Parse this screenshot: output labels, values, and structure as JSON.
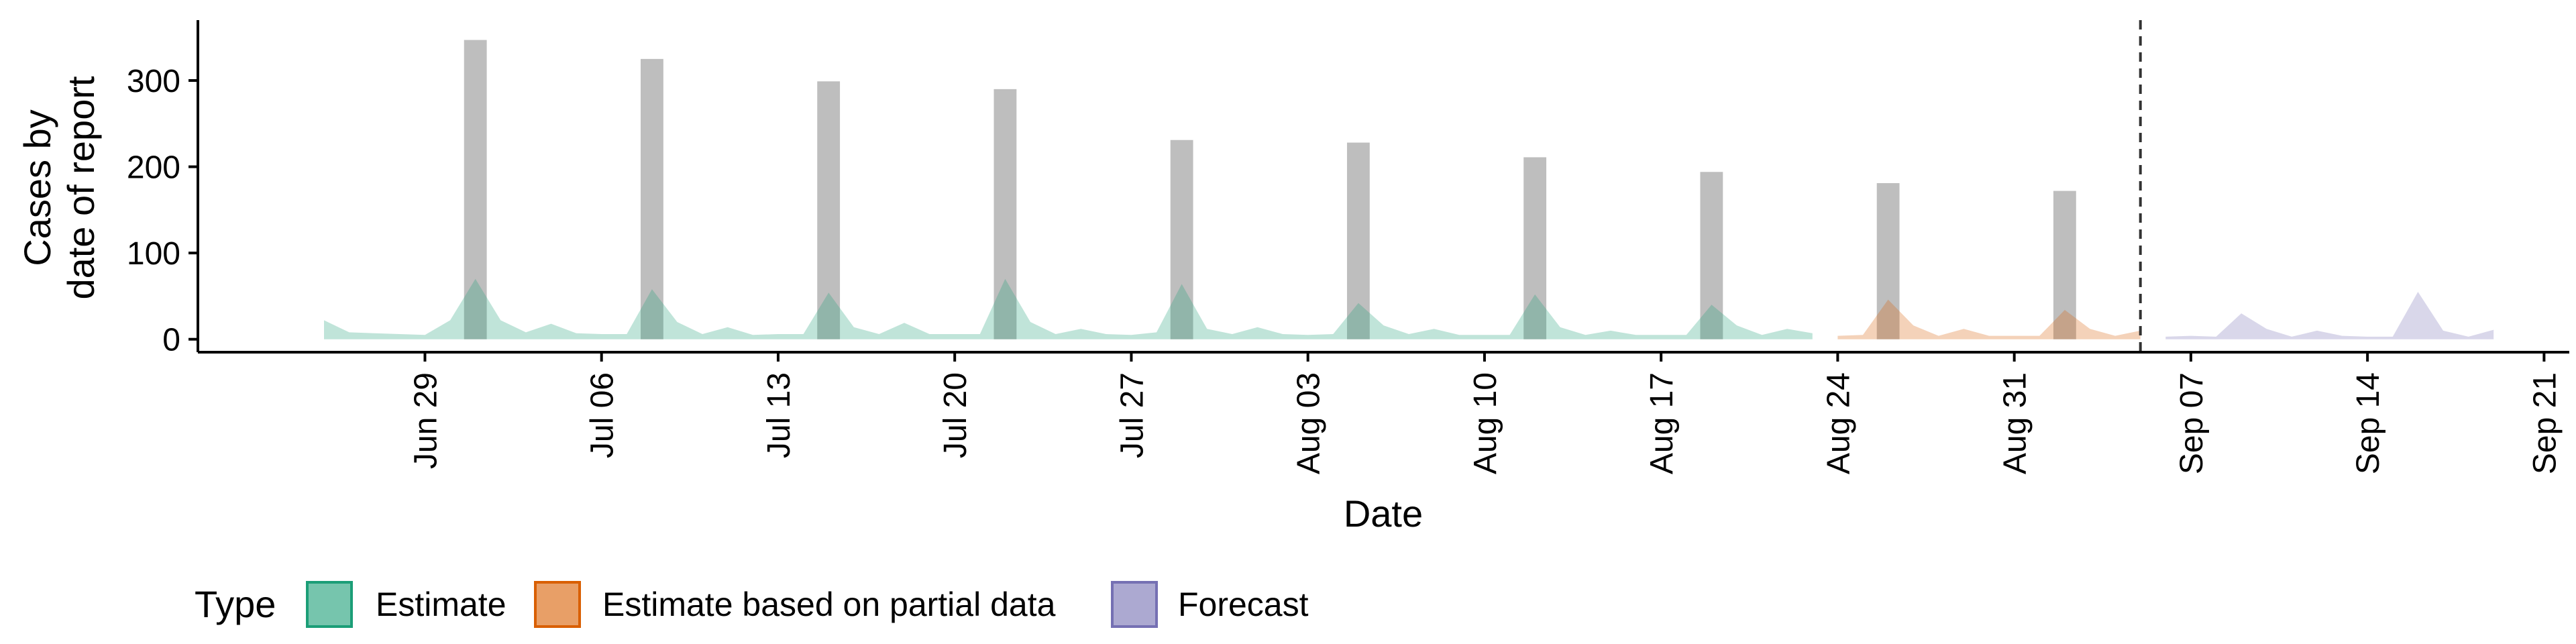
{
  "chart_data": {
    "type": "area",
    "title": "",
    "xlabel": "Date",
    "ylabel_lines": [
      "Cases by",
      "date of report"
    ],
    "ylim": [
      -15,
      370
    ],
    "yticks": [
      0,
      100,
      200,
      300
    ],
    "xlim": [
      "2020-06-20",
      "2020-09-22"
    ],
    "xticks": [
      {
        "date": "2020-06-29",
        "label": "Jun 29"
      },
      {
        "date": "2020-07-06",
        "label": "Jul 06"
      },
      {
        "date": "2020-07-13",
        "label": "Jul 13"
      },
      {
        "date": "2020-07-20",
        "label": "Jul 20"
      },
      {
        "date": "2020-07-27",
        "label": "Jul 27"
      },
      {
        "date": "2020-08-03",
        "label": "Aug 03"
      },
      {
        "date": "2020-08-10",
        "label": "Aug 10"
      },
      {
        "date": "2020-08-17",
        "label": "Aug 17"
      },
      {
        "date": "2020-08-24",
        "label": "Aug 24"
      },
      {
        "date": "2020-08-31",
        "label": "Aug 31"
      },
      {
        "date": "2020-09-07",
        "label": "Sep 07"
      },
      {
        "date": "2020-09-14",
        "label": "Sep 14"
      },
      {
        "date": "2020-09-21",
        "label": "Sep 21"
      }
    ],
    "vline_date": "2020-09-05",
    "bars": {
      "color": "#bebebe",
      "points": [
        {
          "x": "2020-07-01",
          "y": 347
        },
        {
          "x": "2020-07-08",
          "y": 325
        },
        {
          "x": "2020-07-15",
          "y": 299
        },
        {
          "x": "2020-07-22",
          "y": 290
        },
        {
          "x": "2020-07-29",
          "y": 231
        },
        {
          "x": "2020-08-05",
          "y": 228
        },
        {
          "x": "2020-08-12",
          "y": 211
        },
        {
          "x": "2020-08-19",
          "y": 194
        },
        {
          "x": "2020-08-26",
          "y": 181
        },
        {
          "x": "2020-09-02",
          "y": 172
        }
      ]
    },
    "series": [
      {
        "name": "Estimate",
        "color": "#1b9e77",
        "x": [
          "2020-06-25",
          "2020-06-26",
          "2020-06-27",
          "2020-06-28",
          "2020-06-29",
          "2020-06-30",
          "2020-07-01",
          "2020-07-02",
          "2020-07-03",
          "2020-07-04",
          "2020-07-05",
          "2020-07-06",
          "2020-07-07",
          "2020-07-08",
          "2020-07-09",
          "2020-07-10",
          "2020-07-11",
          "2020-07-12",
          "2020-07-13",
          "2020-07-14",
          "2020-07-15",
          "2020-07-16",
          "2020-07-17",
          "2020-07-18",
          "2020-07-19",
          "2020-07-20",
          "2020-07-21",
          "2020-07-22",
          "2020-07-23",
          "2020-07-24",
          "2020-07-25",
          "2020-07-26",
          "2020-07-27",
          "2020-07-28",
          "2020-07-29",
          "2020-07-30",
          "2020-07-31",
          "2020-08-01",
          "2020-08-02",
          "2020-08-03",
          "2020-08-04",
          "2020-08-05",
          "2020-08-06",
          "2020-08-07",
          "2020-08-08",
          "2020-08-09",
          "2020-08-10",
          "2020-08-11",
          "2020-08-12",
          "2020-08-13",
          "2020-08-14",
          "2020-08-15",
          "2020-08-16",
          "2020-08-17",
          "2020-08-18",
          "2020-08-19",
          "2020-08-20",
          "2020-08-21",
          "2020-08-22",
          "2020-08-23"
        ],
        "upper": [
          22,
          8,
          7,
          6,
          5,
          22,
          70,
          22,
          8,
          18,
          7,
          6,
          6,
          58,
          20,
          6,
          14,
          5,
          6,
          6,
          54,
          14,
          6,
          19,
          6,
          6,
          6,
          70,
          20,
          6,
          12,
          6,
          5,
          8,
          64,
          12,
          6,
          14,
          6,
          5,
          6,
          42,
          16,
          6,
          12,
          5,
          5,
          5,
          52,
          14,
          5,
          10,
          5,
          5,
          5,
          40,
          16,
          5,
          12,
          7
        ],
        "lower": [
          0,
          0,
          0,
          0,
          0,
          0,
          0,
          0,
          0,
          0,
          0,
          0,
          0,
          0,
          0,
          0,
          0,
          0,
          0,
          0,
          0,
          0,
          0,
          0,
          0,
          0,
          0,
          0,
          0,
          0,
          0,
          0,
          0,
          0,
          0,
          0,
          0,
          0,
          0,
          0,
          0,
          0,
          0,
          0,
          0,
          0,
          0,
          0,
          0,
          0,
          0,
          0,
          0,
          0,
          0,
          0,
          0,
          0,
          0,
          0
        ]
      },
      {
        "name": "Estimate based on partial data",
        "color": "#d95f02",
        "x": [
          "2020-08-24",
          "2020-08-25",
          "2020-08-26",
          "2020-08-27",
          "2020-08-28",
          "2020-08-29",
          "2020-08-30",
          "2020-08-31",
          "2020-09-01",
          "2020-09-02",
          "2020-09-03",
          "2020-09-04",
          "2020-09-05"
        ],
        "upper": [
          4,
          5,
          46,
          16,
          4,
          12,
          4,
          4,
          4,
          34,
          12,
          4,
          10
        ],
        "lower": [
          0,
          0,
          0,
          0,
          0,
          0,
          0,
          0,
          0,
          0,
          0,
          0,
          0
        ]
      },
      {
        "name": "Forecast",
        "color": "#7570b3",
        "x": [
          "2020-09-06",
          "2020-09-07",
          "2020-09-08",
          "2020-09-09",
          "2020-09-10",
          "2020-09-11",
          "2020-09-12",
          "2020-09-13",
          "2020-09-14",
          "2020-09-15",
          "2020-09-16",
          "2020-09-17",
          "2020-09-18",
          "2020-09-19"
        ],
        "upper": [
          3,
          4,
          3,
          30,
          12,
          3,
          10,
          4,
          3,
          3,
          55,
          10,
          3,
          11
        ],
        "lower": [
          0,
          0,
          0,
          0,
          0,
          0,
          0,
          0,
          0,
          0,
          0,
          0,
          0,
          0
        ]
      }
    ],
    "legend": {
      "title": "Type",
      "position": "bottom",
      "items": [
        {
          "label": "Estimate",
          "color": "#1b9e77"
        },
        {
          "label": "Estimate based on partial data",
          "color": "#d95f02"
        },
        {
          "label": "Forecast",
          "color": "#7570b3"
        }
      ]
    },
    "grid": false
  }
}
